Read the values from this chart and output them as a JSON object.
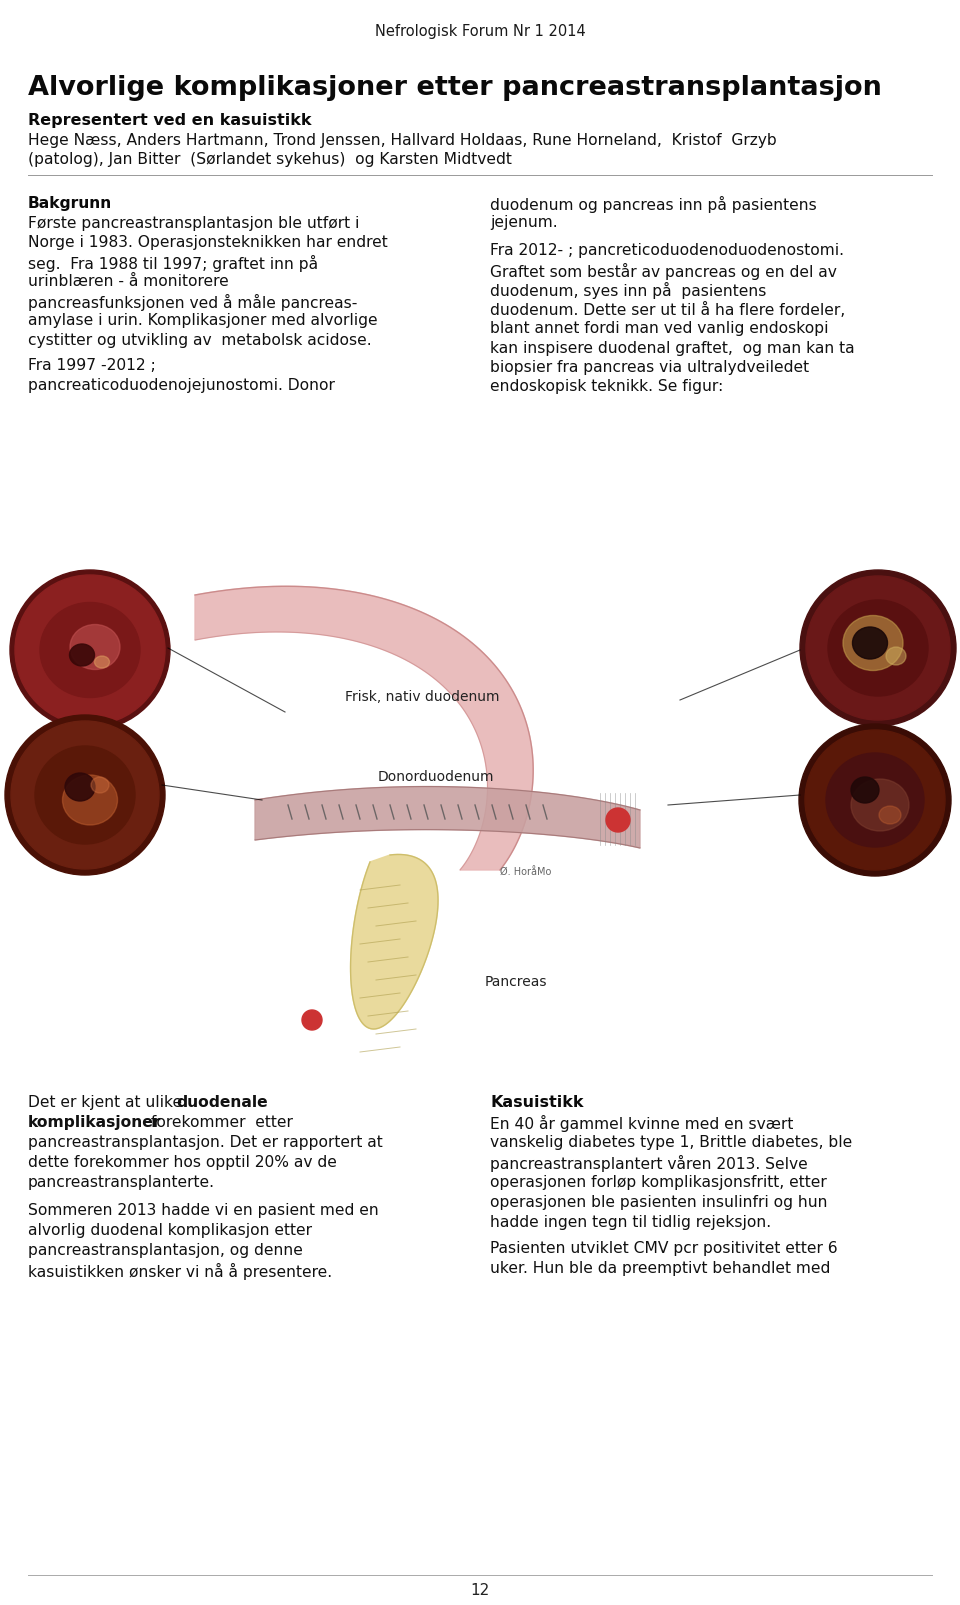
{
  "bg_color": "#ffffff",
  "header_text": "Nefrologisk Forum Nr 1 2014",
  "title": "Alvorlige komplikasjoner etter pancreastransplantasjon",
  "subtitle": "Representert ved en kasuistikk",
  "authors_line1": "Hege Næss, Anders Hartmann, Trond Jenssen, Hallvard Holdaas, Rune Horneland,  Kristof  Grzyb",
  "authors_line2": "(patolog), Jan Bitter  (Sørlandet sykehus)  og Karsten Midtvedt",
  "col1_bakgrunn_heading": "Bakgrunn",
  "col1_para1a": "Første pancreastransplantasjon ble utført i",
  "col1_para1b": "Norge i 1983. Operasjonsteknikken har endret",
  "col1_para1c": "seg.  Fra 1988 til 1997; graftet inn på",
  "col1_para1d": "urinblæren - å monitorere",
  "col1_para1e": "pancreasfunksjonen ved å måle pancreas-",
  "col1_para1f": "amylase i urin. Komplikasjoner med alvorlige",
  "col1_para1g": "cystitter og utvikling av  metabolsk acidose.",
  "col1_para2a": "Fra 1997 -2012 ;",
  "col1_para2b": "pancreaticoduodenojejunostomi. Donor",
  "col2_para1a": "duodenum og pancreas inn på pasientens",
  "col2_para1b": "jejenum.",
  "col2_para2a": "Fra 2012- ; pancreticoduodenoduodenostomi.",
  "col2_para2b": "Graftet som består av pancreas og en del av",
  "col2_para2c": "duodenum, syes inn på  pasientens",
  "col2_para2d": "duodenum. Dette ser ut til å ha flere fordeler,",
  "col2_para2e": "blant annet fordi man ved vanlig endoskopi",
  "col2_para2f": "kan inspisere duodenal graftet,  og man kan ta",
  "col2_para2g": "biopsier fra pancreas via ultralydveiledet",
  "col2_para2h": "endoskopisk teknikk. Se figur:",
  "label_frisk": "Frisk, nativ duodenum",
  "label_donor": "Donorduodenum",
  "label_pancreas": "Pancreas",
  "col1_bot_line1a": "Det er kjent at ulike ",
  "col1_bot_line1b": "duodenale",
  "col1_bot_line2a": "komplikasjoner",
  "col1_bot_line2b": " forekommer  etter",
  "col1_bot_line3": "pancreastransplantasjon. Det er rapportert at",
  "col1_bot_line4": "dette forekommer hos opptil 20% av de",
  "col1_bot_line5": "pancreastransplanterte.",
  "col1_bot_line6": "",
  "col1_bot_line7": "Sommeren 2013 hadde vi en pasient med en",
  "col1_bot_line8": "alvorlig duodenal komplikasjon etter",
  "col1_bot_line9": "pancreastransplantasjon, og denne",
  "col1_bot_line10": "kasuistikken ønsker vi nå å presentere.",
  "col2_bot_heading": "Kasuistikk",
  "col2_bot_line1": "En 40 år gammel kvinne med en svært",
  "col2_bot_line2": "vanskelig diabetes type 1, Brittle diabetes, ble",
  "col2_bot_line3": "pancreastransplantert våren 2013. Selve",
  "col2_bot_line4": "operasjonen forløp komplikasjonsfritt, etter",
  "col2_bot_line5": "operasjonen ble pasienten insulinfri og hun",
  "col2_bot_line6": "hadde ingen tegn til tidlig rejeksjon.",
  "col2_bot_line7": "",
  "col2_bot_line8": "Pasienten utviklet CMV pcr positivitet etter 6",
  "col2_bot_line9": "uker. Hun ble da preemptivt behandlet med",
  "page_number": "12",
  "illus_tube_pink": "#e8b8b8",
  "illus_tube_pink_dark": "#d49090",
  "illus_tube_pink2": "#d4a0a0",
  "illus_tube_edge": "#c07878",
  "illus_pancreas_fill": "#e8d898",
  "illus_pancreas_edge": "#c8b860",
  "illus_red_dot": "#cc3333",
  "line_color": "#aaaaaa"
}
